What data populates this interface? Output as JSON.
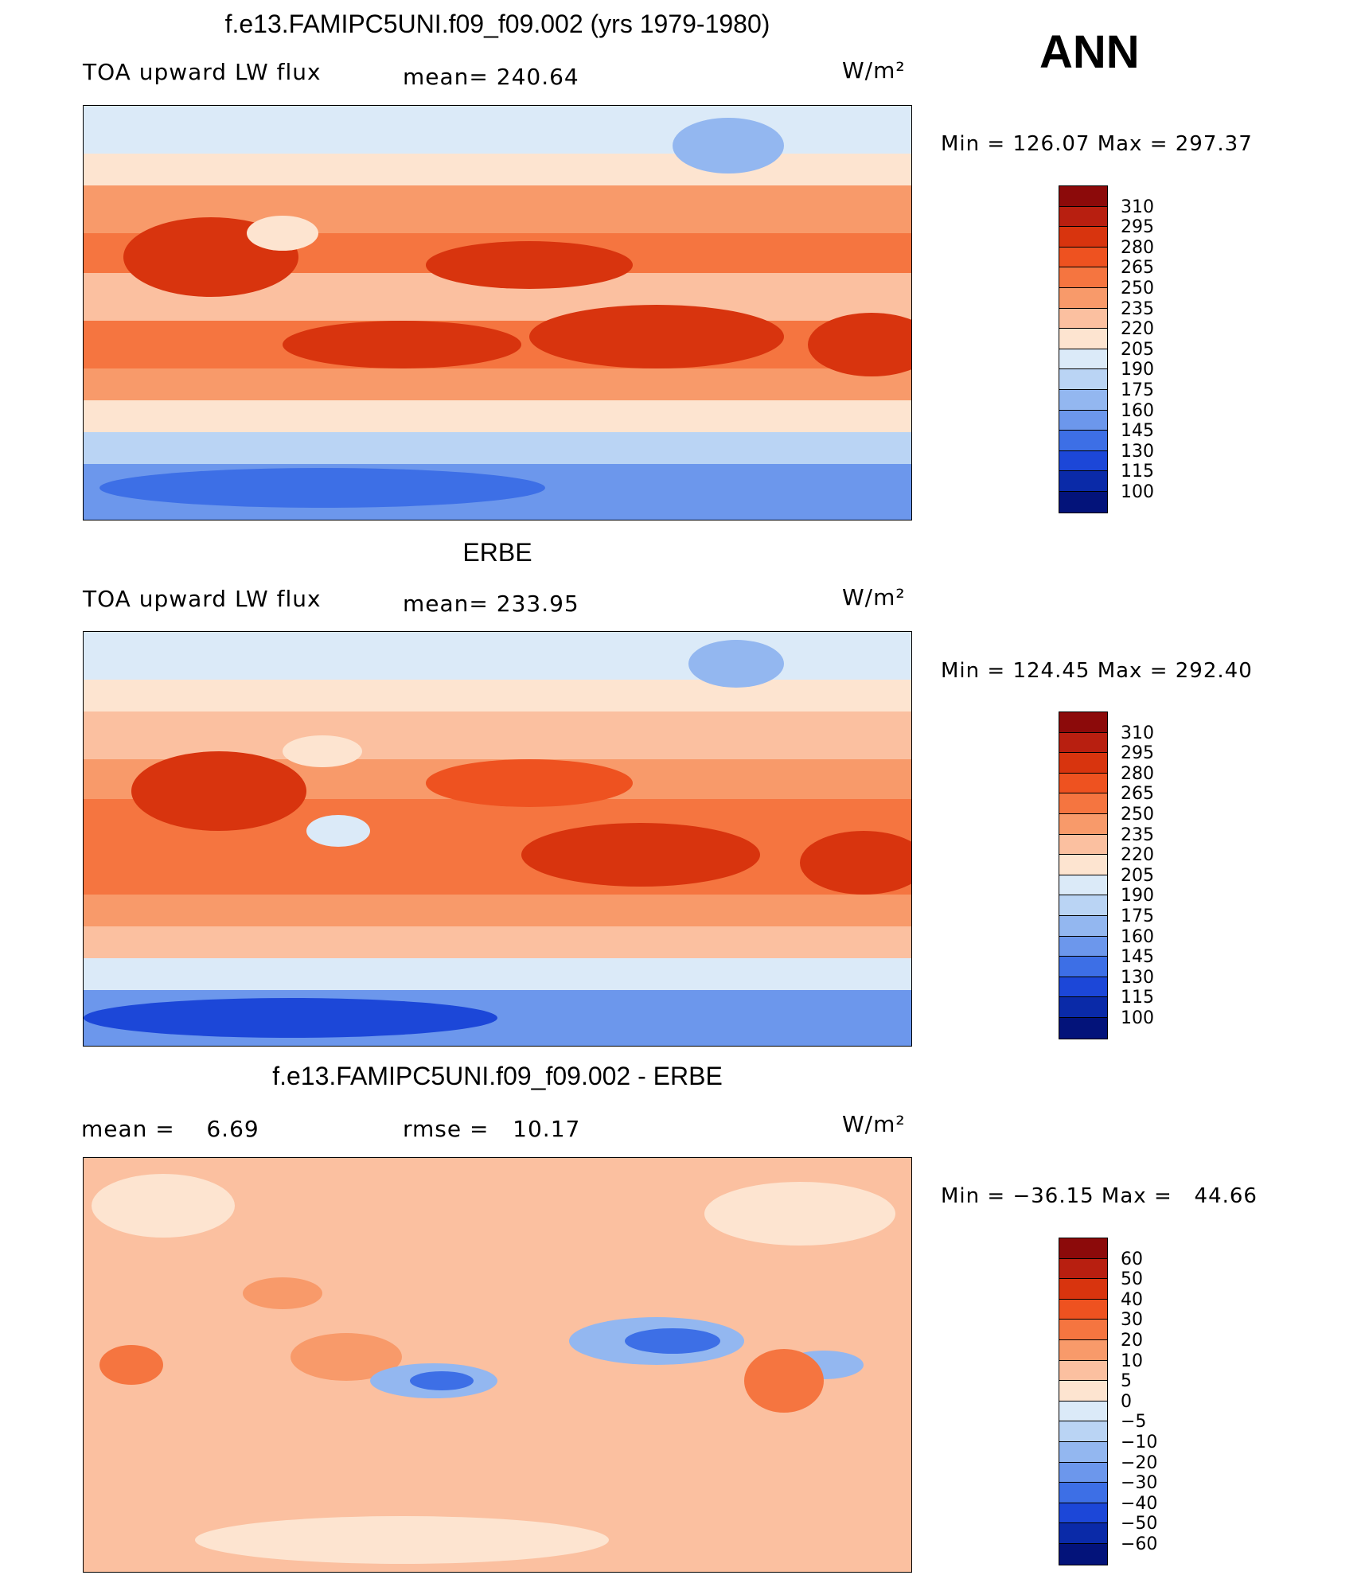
{
  "season": "ANN",
  "panels": [
    {
      "id": "model",
      "title": "f.e13.FAMIPC5UNI.f09_f09.002 (yrs 1979-1980)",
      "left_text": "TOA upward LW flux",
      "mid_text": "mean= 240.64",
      "units": "W/m²",
      "minmax": "Min = 126.07 Max = 297.37",
      "colorbar_labels": [
        "310",
        "295",
        "280",
        "265",
        "250",
        "235",
        "220",
        "205",
        "190",
        "175",
        "160",
        "145",
        "130",
        "115",
        "100"
      ],
      "colorbar_colors": [
        "#8c0a0a",
        "#b81f10",
        "#d8340e",
        "#ee5220",
        "#f57540",
        "#f89a6a",
        "#fbc0a0",
        "#fde4d0",
        "#dbeaf8",
        "#bad4f4",
        "#93b7f0",
        "#6c97ec",
        "#3d6fe6",
        "#1c47d8",
        "#0a2aa8",
        "#03137a"
      ]
    },
    {
      "id": "obs",
      "title": "ERBE",
      "left_text": "TOA upward LW flux",
      "mid_text": "mean= 233.95",
      "units": "W/m²",
      "minmax": "Min = 124.45 Max = 292.40",
      "colorbar_labels": [
        "310",
        "295",
        "280",
        "265",
        "250",
        "235",
        "220",
        "205",
        "190",
        "175",
        "160",
        "145",
        "130",
        "115",
        "100"
      ],
      "colorbar_colors": [
        "#8c0a0a",
        "#b81f10",
        "#d8340e",
        "#ee5220",
        "#f57540",
        "#f89a6a",
        "#fbc0a0",
        "#fde4d0",
        "#dbeaf8",
        "#bad4f4",
        "#93b7f0",
        "#6c97ec",
        "#3d6fe6",
        "#1c47d8",
        "#0a2aa8",
        "#03137a"
      ]
    },
    {
      "id": "diff",
      "title": "f.e13.FAMIPC5UNI.f09_f09.002 - ERBE",
      "left_text": "mean =    6.69",
      "mid_text": "rmse =   10.17",
      "units": "W/m²",
      "minmax": "Min = −36.15 Max =   44.66",
      "colorbar_labels": [
        "60",
        "50",
        "40",
        "30",
        "20",
        "10",
        "5",
        "0",
        "−5",
        "−10",
        "−20",
        "−30",
        "−40",
        "−50",
        "−60"
      ],
      "colorbar_colors": [
        "#8c0a0a",
        "#b81f10",
        "#d8340e",
        "#ee5220",
        "#f57540",
        "#f89a6a",
        "#fbc0a0",
        "#fde4d0",
        "#dbeaf8",
        "#bad4f4",
        "#93b7f0",
        "#6c97ec",
        "#3d6fe6",
        "#1c47d8",
        "#0a2aa8",
        "#03137a"
      ]
    }
  ]
}
